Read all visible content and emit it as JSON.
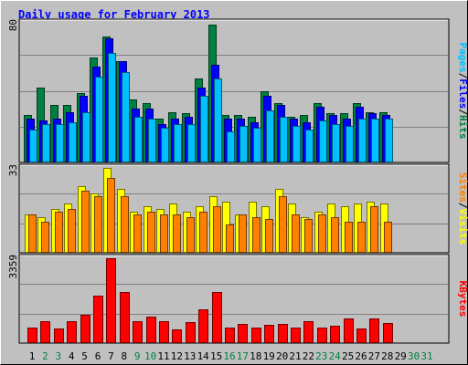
{
  "chart_data": {
    "type": "bar",
    "title": "Daily usage for February 2013",
    "days": [
      "1",
      "2",
      "3",
      "4",
      "5",
      "6",
      "7",
      "8",
      "9",
      "10",
      "11",
      "12",
      "13",
      "14",
      "15",
      "16",
      "17",
      "18",
      "19",
      "20",
      "21",
      "22",
      "23",
      "24",
      "25",
      "26",
      "27",
      "28",
      "29",
      "30",
      "31"
    ],
    "weekend_days": [
      "2",
      "3",
      "9",
      "10",
      "16",
      "17",
      "23",
      "24",
      "30",
      "31"
    ],
    "panels": [
      {
        "id": "hits",
        "ymax_label": "80",
        "ymax": 80,
        "legend": [
          "Pages",
          "Files",
          "Hits"
        ],
        "series": [
          {
            "name": "Hits",
            "color": "#008040",
            "values": [
              27,
              43,
              33,
              33,
              40,
              60,
              72,
              58,
              36,
              34,
              25,
              29,
              28,
              48,
              79,
              27,
              27,
              26,
              41,
              34,
              26,
              27,
              34,
              28,
              28,
              34,
              29,
              29
            ]
          },
          {
            "name": "Files",
            "color": "#0000ff",
            "values": [
              25,
              24,
              25,
              29,
              38,
              55,
              71,
              58,
              31,
              31,
              22,
              25,
              26,
              43,
              56,
              25,
              25,
              23,
              38,
              33,
              25,
              23,
              32,
              27,
              25,
              32,
              28,
              27
            ]
          },
          {
            "name": "Pages",
            "color": "#00c0ff",
            "values": [
              19,
              22,
              22,
              23,
              29,
              49,
              63,
              52,
              26,
              25,
              20,
              22,
              22,
              38,
              48,
              18,
              21,
              20,
              30,
              26,
              21,
              19,
              24,
              22,
              21,
              25,
              25,
              25
            ]
          }
        ]
      },
      {
        "id": "visits",
        "ymax_label": "33",
        "ymax": 33,
        "legend": [
          "Sites",
          "Visits"
        ],
        "series": [
          {
            "name": "Visits",
            "color": "#ffff00",
            "values": [
              15,
              14,
              17,
              19,
              26,
              23,
              33,
              25,
              16,
              18,
              17,
              19,
              16,
              18,
              22,
              20,
              15,
              20,
              18,
              25,
              19,
              14,
              16,
              19,
              18,
              19,
              20,
              19
            ]
          },
          {
            "name": "Sites",
            "color": "#ff8000",
            "values": [
              15,
              12,
              16,
              17,
              24,
              22,
              29,
              22,
              15,
              16,
              15,
              15,
              14,
              16,
              18,
              11,
              15,
              14,
              13,
              22,
              15,
              13,
              15,
              14,
              12,
              12,
              18,
              12
            ]
          }
        ]
      },
      {
        "id": "kbytes",
        "ymax_label": "3359",
        "ymax": 3359,
        "legend": [
          "KBytes"
        ],
        "series": [
          {
            "name": "KBytes",
            "color": "#ff0000",
            "values": [
              622,
              874,
              585,
              874,
              1131,
              1865,
              3359,
              2007,
              874,
              1030,
              874,
              528,
              837,
              1339,
              2007,
              622,
              748,
              604,
              733,
              773,
              622,
              874,
              622,
              671,
              979,
              562,
              979,
              797
            ]
          }
        ]
      }
    ]
  }
}
